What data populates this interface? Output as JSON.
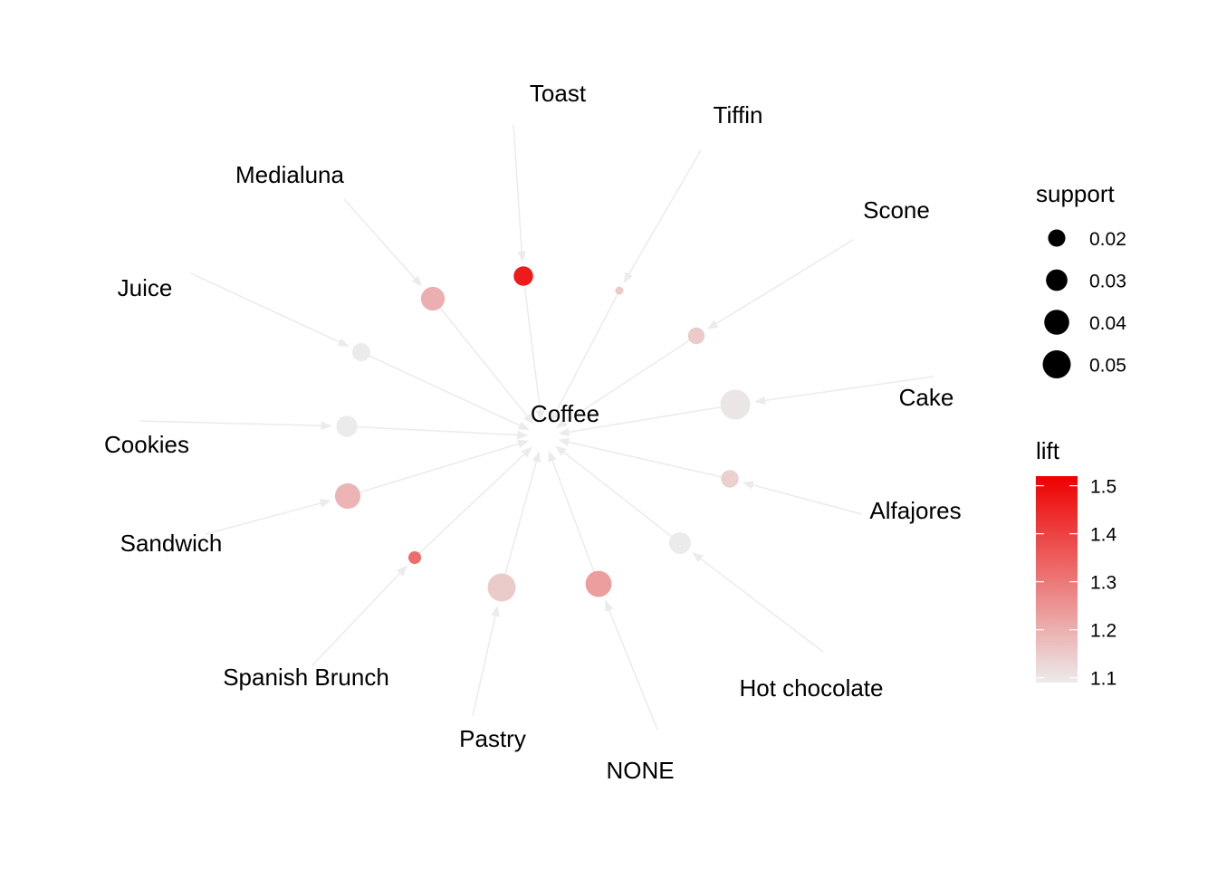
{
  "graph": {
    "center": {
      "label": "Coffee"
    },
    "rules": [
      {
        "item": "Toast",
        "support": 0.024,
        "lift": 1.47
      },
      {
        "item": "Tiffin",
        "support": 0.005,
        "lift": 1.15
      },
      {
        "item": "Scone",
        "support": 0.018,
        "lift": 1.15
      },
      {
        "item": "Cake",
        "support": 0.054,
        "lift": 1.1
      },
      {
        "item": "Alfajores",
        "support": 0.02,
        "lift": 1.14
      },
      {
        "item": "Hot chocolate",
        "support": 0.03,
        "lift": 1.09
      },
      {
        "item": "NONE",
        "support": 0.042,
        "lift": 1.23
      },
      {
        "item": "Pastry",
        "support": 0.048,
        "lift": 1.15
      },
      {
        "item": "Spanish Brunch",
        "support": 0.011,
        "lift": 1.32
      },
      {
        "item": "Sandwich",
        "support": 0.04,
        "lift": 1.19
      },
      {
        "item": "Cookies",
        "support": 0.028,
        "lift": 1.09
      },
      {
        "item": "Juice",
        "support": 0.021,
        "lift": 1.09
      },
      {
        "item": "Medialuna",
        "support": 0.035,
        "lift": 1.2
      }
    ]
  },
  "legend": {
    "support": {
      "title": "support",
      "entries": [
        "0.02",
        "0.03",
        "0.04",
        "0.05"
      ],
      "values": [
        0.02,
        0.03,
        0.04,
        0.05
      ]
    },
    "lift": {
      "title": "lift",
      "ticks": [
        "1.1",
        "1.2",
        "1.3",
        "1.4",
        "1.5"
      ],
      "values": [
        1.1,
        1.2,
        1.3,
        1.4,
        1.5
      ],
      "range": [
        1.09,
        1.52
      ],
      "low_color": "#ebebeb",
      "high_color": "#ee0000"
    }
  },
  "colors": {
    "edge": "#ebebeb",
    "marker": "#000000"
  }
}
